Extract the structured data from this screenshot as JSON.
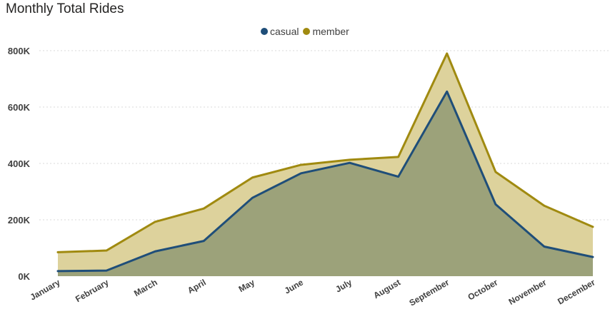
{
  "chart_data": {
    "type": "area",
    "title": "Monthly Total Rides",
    "categories": [
      "January",
      "February",
      "March",
      "April",
      "May",
      "June",
      "July",
      "August",
      "September",
      "October",
      "November",
      "December"
    ],
    "series": [
      {
        "name": "casual",
        "color": "#1F4E79",
        "values": [
          18000,
          20000,
          88000,
          125000,
          278000,
          365000,
          402000,
          353000,
          655000,
          255000,
          105000,
          68000
        ]
      },
      {
        "name": "member",
        "color": "#A08A10",
        "values": [
          85000,
          91000,
          193000,
          240000,
          350000,
          395000,
          413000,
          423000,
          790000,
          370000,
          250000,
          175000
        ]
      }
    ],
    "ylim": [
      0,
      800000
    ],
    "yticks": [
      "0K",
      "200K",
      "400K",
      "600K",
      "800K"
    ],
    "ytick_values": [
      0,
      200000,
      400000,
      600000,
      800000
    ],
    "grid": true,
    "legend": "top-center",
    "stacked": false,
    "fill_colors": {
      "casual": "#9CA27A",
      "member": "#DDD29C"
    }
  }
}
